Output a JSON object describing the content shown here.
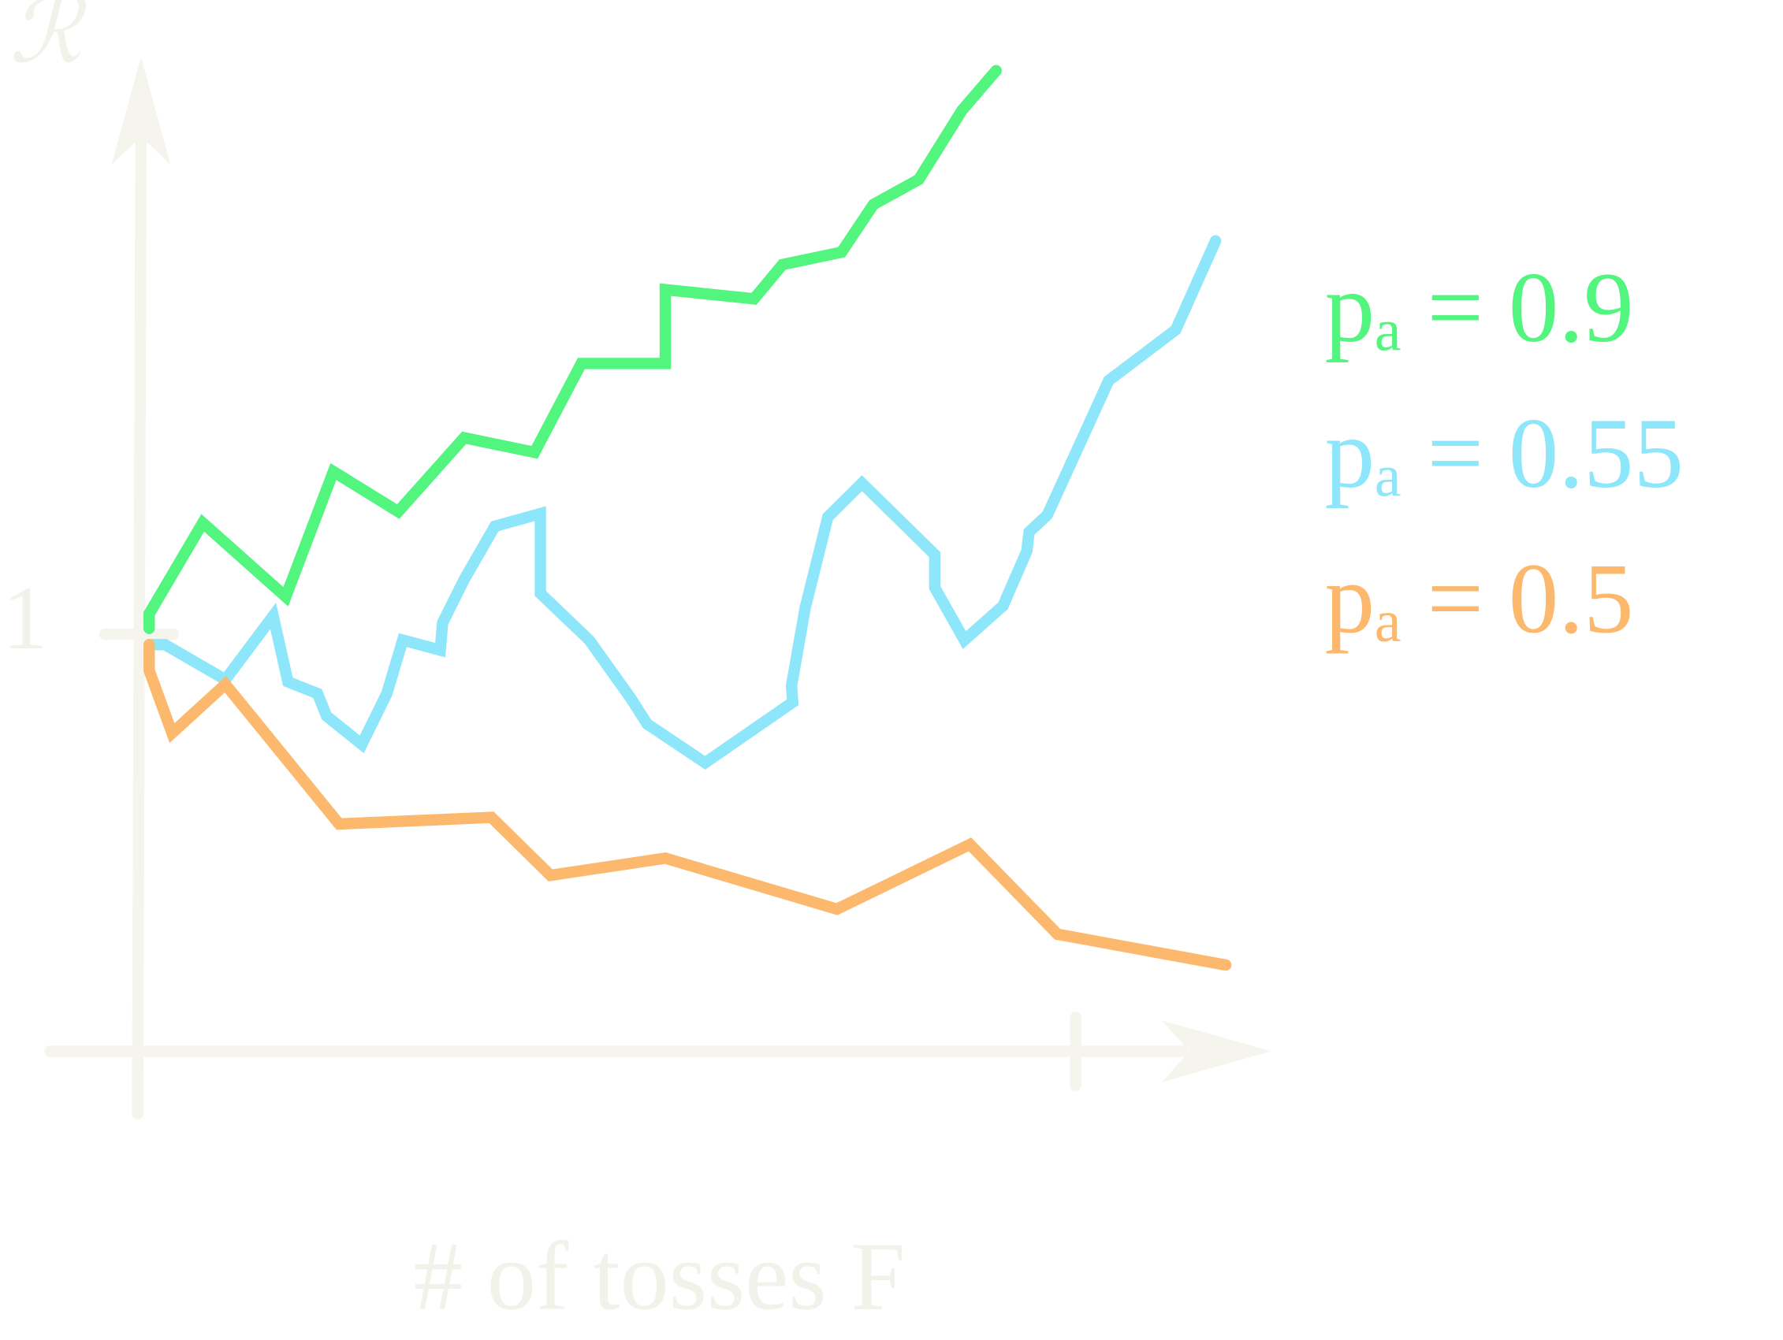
{
  "chart_data": {
    "type": "line",
    "y_label": "ℛ",
    "x_label": "# of tosses F",
    "xlim": [
      -9.5,
      121
    ],
    "ylim": [
      -0.155,
      2.384
    ],
    "yticks": [
      1
    ],
    "series": [
      {
        "name": "pₐ = 0.9",
        "color": "#52f57d",
        "x": [
          1.09,
          1.09,
          6.8,
          15.66,
          20.75,
          27.67,
          34.71,
          42.23,
          47.21,
          56.19,
          56.19,
          65.66,
          68.69,
          75.0,
          78.4,
          83.25,
          87.86,
          91.5
        ],
        "values": [
          1.014,
          1.049,
          1.267,
          1.09,
          1.39,
          1.294,
          1.471,
          1.436,
          1.649,
          1.649,
          1.826,
          1.804,
          1.886,
          1.916,
          2.03,
          2.09,
          2.256,
          2.351
        ]
      },
      {
        "name": "pₐ = 0.55",
        "color": "#8ee6fa",
        "x": [
          1.09,
          2.79,
          9.22,
          14.32,
          15.9,
          19.05,
          20.02,
          23.79,
          26.46,
          28.16,
          32.16,
          32.4,
          34.71,
          37.99,
          42.84,
          42.84,
          48.06,
          52.55,
          54.25,
          60.44,
          69.78,
          69.66,
          71.12,
          73.54,
          77.18,
          84.95,
          84.95,
          88.11,
          92.23,
          94.78,
          95.02,
          96.97,
          103.52,
          110.68,
          114.93
        ],
        "values": [
          0.975,
          0.975,
          0.891,
          1.044,
          0.886,
          0.858,
          0.804,
          0.736,
          0.858,
          0.986,
          0.962,
          1.027,
          1.131,
          1.259,
          1.289,
          1.098,
          0.986,
          0.845,
          0.785,
          0.692,
          0.837,
          0.877,
          1.063,
          1.281,
          1.362,
          1.191,
          1.112,
          0.986,
          1.068,
          1.199,
          1.245,
          1.286,
          1.608,
          1.73,
          1.943
        ]
      },
      {
        "name": "pₐ = 0.5",
        "color": "#fcb86c",
        "x": [
          1.09,
          1.09,
          3.52,
          9.22,
          21.36,
          37.62,
          43.93,
          56.19,
          74.51,
          88.71,
          98.06,
          116.02
        ],
        "values": [
          0.975,
          0.913,
          0.763,
          0.88,
          0.545,
          0.561,
          0.422,
          0.463,
          0.341,
          0.496,
          0.281,
          0.207
        ]
      }
    ]
  }
}
